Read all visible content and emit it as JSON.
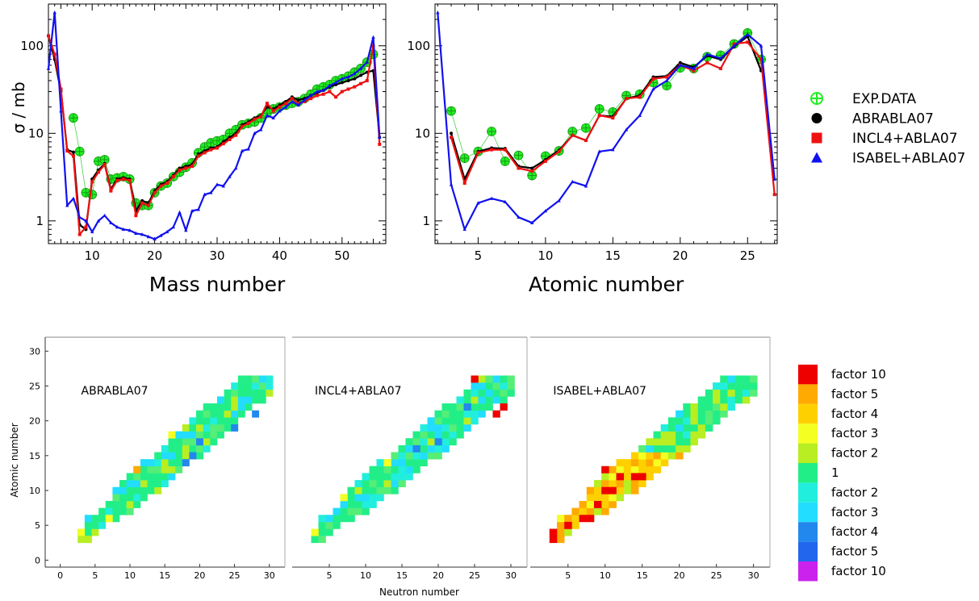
{
  "top_legend": [
    {
      "label": "EXP.DATA",
      "marker": "circle-plus",
      "color": "#22ee22"
    },
    {
      "label": "ABRABLA07",
      "marker": "circle",
      "color": "#000000"
    },
    {
      "label": "INCL4+ABLA07",
      "marker": "square",
      "color": "#ee1111"
    },
    {
      "label": "ISABEL+ABLA07",
      "marker": "triangle",
      "color": "#1111ee"
    }
  ],
  "heat_legend": [
    {
      "label": "factor 10",
      "color": "#ee0000"
    },
    {
      "label": "factor 5",
      "color": "#ffaa00"
    },
    {
      "label": "factor 4",
      "color": "#ffd000"
    },
    {
      "label": "factor 3",
      "color": "#f4ff22"
    },
    {
      "label": "factor 2",
      "color": "#b8ee22"
    },
    {
      "label": "1",
      "color": "#22ee88"
    },
    {
      "label": "factor 2",
      "color": "#22eedd"
    },
    {
      "label": "factor 3",
      "color": "#22ddff"
    },
    {
      "label": "factor 4",
      "color": "#2288ee"
    },
    {
      "label": "factor 5",
      "color": "#2266ee"
    },
    {
      "label": "factor 10",
      "color": "#cc22ee"
    }
  ],
  "chart_data": [
    {
      "type": "line",
      "xlabel": "Mass number",
      "ylabel": "σ / mb",
      "yscale": "log",
      "ylim": [
        0.55,
        300
      ],
      "xlim": [
        3,
        57
      ],
      "xticks": [
        10,
        20,
        30,
        40,
        50
      ],
      "yticks": [
        1,
        10,
        100
      ],
      "ytick_labels": [
        "1",
        "10",
        "100"
      ],
      "grid": false,
      "series": [
        {
          "name": "EXP.DATA",
          "color": "#22ee22",
          "marker": "circle-plus",
          "x": [
            7,
            8,
            9,
            10,
            11,
            12,
            13,
            14,
            15,
            16,
            17,
            18,
            19,
            20,
            21,
            22,
            23,
            24,
            25,
            26,
            27,
            28,
            29,
            30,
            31,
            32,
            33,
            34,
            35,
            36,
            37,
            38,
            39,
            40,
            41,
            42,
            43,
            44,
            45,
            46,
            47,
            48,
            49,
            50,
            51,
            52,
            53,
            54,
            55
          ],
          "y": [
            15,
            6.2,
            2.1,
            2,
            4.8,
            5,
            3,
            3.1,
            3.2,
            3,
            1.6,
            1.5,
            1.5,
            2.1,
            2.5,
            2.7,
            3.2,
            3.6,
            4.1,
            4.6,
            6,
            7,
            7.8,
            8.2,
            8.5,
            10,
            11,
            12.5,
            13,
            13.5,
            15,
            17,
            19,
            20,
            21,
            22,
            23,
            25,
            28,
            32,
            34,
            36,
            40,
            42,
            45,
            50,
            55,
            65,
            80
          ]
        },
        {
          "name": "ABRABLA07",
          "color": "#000000",
          "marker": "circle",
          "x": [
            3,
            4,
            5,
            6,
            7,
            8,
            9,
            10,
            11,
            12,
            13,
            14,
            15,
            16,
            17,
            18,
            19,
            20,
            21,
            22,
            23,
            24,
            25,
            26,
            27,
            28,
            29,
            30,
            31,
            32,
            33,
            34,
            35,
            36,
            37,
            38,
            39,
            40,
            41,
            42,
            43,
            44,
            45,
            46,
            47,
            48,
            49,
            50,
            51,
            52,
            53,
            54,
            55,
            56
          ],
          "y": [
            130,
            70,
            30,
            6.5,
            6.1,
            0.9,
            0.8,
            3,
            3.8,
            4.5,
            2.3,
            3,
            3.1,
            3,
            1.3,
            1.7,
            1.6,
            2.2,
            2.6,
            2.8,
            3.3,
            4,
            4.2,
            4.4,
            5.8,
            6.3,
            6.8,
            7,
            8,
            9,
            10,
            12.5,
            13.5,
            15,
            16,
            20,
            19,
            21,
            23,
            26,
            24,
            25,
            27,
            29,
            31,
            34,
            36,
            38,
            40,
            42,
            46,
            50,
            52,
            9
          ]
        },
        {
          "name": "INCL4+ABLA07",
          "color": "#ee1111",
          "marker": "square",
          "x": [
            3,
            4,
            5,
            6,
            7,
            8,
            9,
            10,
            11,
            12,
            13,
            14,
            15,
            16,
            17,
            18,
            19,
            20,
            21,
            22,
            23,
            24,
            25,
            26,
            27,
            28,
            29,
            30,
            31,
            32,
            33,
            34,
            35,
            36,
            37,
            38,
            39,
            40,
            41,
            42,
            43,
            44,
            45,
            46,
            47,
            48,
            49,
            50,
            51,
            52,
            53,
            54,
            55,
            56
          ],
          "y": [
            130,
            80,
            32,
            6.3,
            5.5,
            0.7,
            0.85,
            2.8,
            3.6,
            4.4,
            2.2,
            2.9,
            3,
            2.9,
            1.15,
            1.6,
            1.5,
            2.1,
            2.5,
            2.7,
            3.2,
            3.8,
            4,
            4.2,
            5.5,
            6,
            6.5,
            6.8,
            7.6,
            8.5,
            9.5,
            12,
            13,
            14.5,
            15.5,
            22,
            18,
            20,
            22,
            25,
            22,
            23,
            25,
            27,
            28,
            30,
            26,
            30,
            32,
            34,
            37,
            40,
            100,
            7.5
          ]
        },
        {
          "name": "ISABEL+ABLA07",
          "color": "#1111ee",
          "marker": "triangle",
          "x": [
            3,
            4,
            5,
            6,
            7,
            8,
            9,
            10,
            11,
            12,
            13,
            14,
            15,
            16,
            17,
            18,
            19,
            20,
            21,
            22,
            23,
            24,
            25,
            26,
            27,
            28,
            29,
            30,
            31,
            32,
            33,
            34,
            35,
            36,
            37,
            38,
            39,
            40,
            41,
            42,
            43,
            44,
            45,
            46,
            47,
            48,
            49,
            50,
            51,
            52,
            53,
            54,
            55,
            56
          ],
          "y": [
            55,
            240,
            18,
            1.5,
            1.8,
            1.1,
            1,
            0.75,
            1,
            1.15,
            0.95,
            0.85,
            0.8,
            0.78,
            0.72,
            0.7,
            0.66,
            0.62,
            0.68,
            0.75,
            0.85,
            1.25,
            0.78,
            1.3,
            1.35,
            2,
            2.1,
            2.6,
            2.5,
            3.2,
            4,
            6.3,
            6.6,
            10,
            11,
            16,
            15,
            18,
            20,
            23,
            21,
            24,
            27,
            30,
            31,
            35,
            38,
            42,
            44,
            48,
            55,
            65,
            125,
            9
          ]
        }
      ]
    },
    {
      "type": "line",
      "xlabel": "Atomic number",
      "ylabel": "",
      "yscale": "log",
      "ylim": [
        0.55,
        300
      ],
      "xlim": [
        1.8,
        27.2
      ],
      "xticks": [
        5,
        10,
        15,
        20,
        25
      ],
      "yticks": [
        1,
        10,
        100
      ],
      "ytick_labels": [
        "1",
        "10",
        "100"
      ],
      "grid": false,
      "series": [
        {
          "name": "EXP.DATA",
          "color": "#22ee22",
          "marker": "circle-plus",
          "x": [
            3,
            4,
            5,
            6,
            7,
            8,
            9,
            10,
            11,
            12,
            13,
            14,
            15,
            16,
            17,
            18,
            19,
            20,
            21,
            22,
            23,
            24,
            25,
            26
          ],
          "y": [
            18,
            5.2,
            6.2,
            10.5,
            4.8,
            5.6,
            3.3,
            5.5,
            6.3,
            10.5,
            11.5,
            19,
            17.5,
            27,
            28,
            38,
            35,
            56,
            55,
            75,
            78,
            105,
            140,
            70
          ]
        },
        {
          "name": "ABRABLA07",
          "color": "#000000",
          "marker": "circle",
          "x": [
            3,
            4,
            5,
            6,
            7,
            8,
            9,
            10,
            11,
            12,
            13,
            14,
            15,
            16,
            17,
            18,
            19,
            20,
            21,
            22,
            23,
            24,
            25,
            26
          ],
          "y": [
            10,
            3,
            6.2,
            6.8,
            6.7,
            4.2,
            4,
            5,
            6.4,
            9.5,
            8.3,
            16,
            15.5,
            25,
            27,
            44,
            45,
            64,
            57,
            77,
            70,
            98,
            128,
            52
          ]
        },
        {
          "name": "INCL4+ABLA07",
          "color": "#ee1111",
          "marker": "square",
          "x": [
            3,
            4,
            5,
            6,
            7,
            8,
            9,
            10,
            11,
            12,
            13,
            14,
            15,
            16,
            17,
            18,
            19,
            20,
            21,
            22,
            23,
            24,
            25,
            26,
            27
          ],
          "y": [
            9,
            2.7,
            6,
            6.5,
            6.5,
            4,
            3.7,
            4.8,
            6.2,
            9.5,
            8.3,
            16,
            15,
            25,
            26,
            42,
            44,
            60,
            52,
            64,
            55,
            105,
            110,
            70,
            2
          ]
        },
        {
          "name": "ISABEL+ABLA07",
          "color": "#1111ee",
          "marker": "triangle",
          "x": [
            2,
            3,
            4,
            5,
            6,
            7,
            8,
            9,
            10,
            11,
            12,
            13,
            14,
            15,
            16,
            17,
            18,
            19,
            20,
            21,
            22,
            23,
            24,
            25,
            26,
            27
          ],
          "y": [
            240,
            2.6,
            0.8,
            1.6,
            1.8,
            1.65,
            1.1,
            0.95,
            1.3,
            1.7,
            2.8,
            2.5,
            6.2,
            6.5,
            11,
            16,
            32,
            40,
            60,
            55,
            80,
            72,
            100,
            135,
            100,
            3
          ]
        }
      ]
    },
    {
      "type": "heatmap",
      "label": "ABRABLA07",
      "xticks": [
        0,
        5,
        10,
        15,
        20,
        25,
        30
      ],
      "yticks": [
        0,
        5,
        10,
        15,
        20,
        25,
        30
      ],
      "ylabel": "Atomic number",
      "default_level": "1",
      "cells_hint": "Z band from (N=3,Z=3) to (N=30,Z=26), mostly level 1",
      "special_cells": [
        {
          "n": 3,
          "z": 4,
          "level": "factor 3"
        },
        {
          "n": 4,
          "z": 3,
          "level": "factor 2+"
        },
        {
          "n": 7,
          "z": 6,
          "level": "factor 3"
        },
        {
          "n": 11,
          "z": 13,
          "level": "factor 5"
        },
        {
          "n": 16,
          "z": 18,
          "level": "factor 3"
        },
        {
          "n": 19,
          "z": 15,
          "level": "factor 4"
        },
        {
          "n": 18,
          "z": 14,
          "level": "factor 4"
        },
        {
          "n": 25,
          "z": 19,
          "level": "factor 4"
        },
        {
          "n": 20,
          "z": 17,
          "level": "factor 4"
        },
        {
          "n": 28,
          "z": 21,
          "level": "factor 4"
        }
      ]
    },
    {
      "type": "heatmap",
      "label": "INCL4+ABLA07",
      "xticks": [
        5,
        10,
        15,
        20,
        25,
        30
      ],
      "xlabel": "Neutron number",
      "default_level": "1",
      "special_cells": [
        {
          "n": 25,
          "z": 26,
          "level": "factor 10"
        },
        {
          "n": 28,
          "z": 21,
          "level": "factor 10"
        },
        {
          "n": 29,
          "z": 22,
          "level": "factor 10"
        },
        {
          "n": 3,
          "z": 4,
          "level": "factor 3"
        },
        {
          "n": 7,
          "z": 9,
          "level": "factor 3"
        },
        {
          "n": 13,
          "z": 14,
          "level": "factor 3"
        },
        {
          "n": 17,
          "z": 16,
          "level": "factor 4"
        },
        {
          "n": 24,
          "z": 22,
          "level": "factor 4"
        },
        {
          "n": 20,
          "z": 17,
          "level": "factor 4"
        }
      ]
    },
    {
      "type": "heatmap",
      "label": "ISABEL+ABLA07",
      "xticks": [
        5,
        10,
        15,
        20,
        25,
        30
      ],
      "default_level": "mixed",
      "special_cells": [
        {
          "n": 3,
          "z": 3,
          "level": "factor 10"
        },
        {
          "n": 3,
          "z": 4,
          "level": "factor 10"
        },
        {
          "n": 5,
          "z": 5,
          "level": "factor 10"
        },
        {
          "n": 7,
          "z": 6,
          "level": "factor 10"
        },
        {
          "n": 8,
          "z": 6,
          "level": "factor 10"
        },
        {
          "n": 9,
          "z": 8,
          "level": "factor 10"
        },
        {
          "n": 10,
          "z": 10,
          "level": "factor 10"
        },
        {
          "n": 11,
          "z": 10,
          "level": "factor 10"
        },
        {
          "n": 10,
          "z": 13,
          "level": "factor 10"
        },
        {
          "n": 12,
          "z": 12,
          "level": "factor 10"
        },
        {
          "n": 14,
          "z": 12,
          "level": "factor 10"
        },
        {
          "n": 15,
          "z": 12,
          "level": "factor 10"
        }
      ]
    }
  ]
}
